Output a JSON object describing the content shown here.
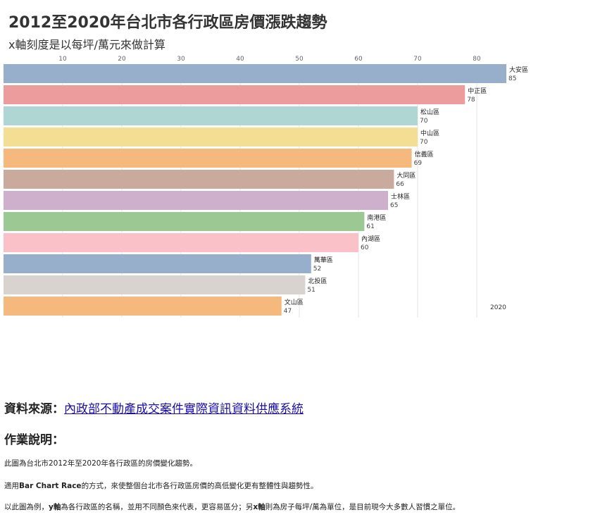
{
  "title": "2012至2020年台北市各行政區房價漲跌趨勢",
  "subtitle": "x軸刻度是以每坪/萬元來做計算",
  "chart_data": {
    "type": "bar",
    "orientation": "horizontal",
    "title": "2012至2020年台北市各行政區房價漲跌趨勢",
    "subtitle": "x軸刻度是以每坪/萬元來做計算",
    "year_label": "2020",
    "x_ticks": [
      10,
      20,
      30,
      40,
      50,
      60,
      70,
      80
    ],
    "xlim": [
      0,
      86
    ],
    "grid": true,
    "categories": [
      "大安區",
      "中正區",
      "松山區",
      "中山區",
      "信義區",
      "大同區",
      "士林區",
      "南港區",
      "內湖區",
      "萬華區",
      "北投區",
      "文山區"
    ],
    "values": [
      85,
      78,
      70,
      70,
      69,
      66,
      65,
      61,
      60,
      52,
      51,
      47
    ],
    "colors": [
      "#97afcb",
      "#ec9c9c",
      "#afd6d2",
      "#f4de94",
      "#f6b97d",
      "#c9aa9c",
      "#cfb0cc",
      "#9cc893",
      "#fbc1c8",
      "#97afcb",
      "#d9d3cf",
      "#f6b97d"
    ]
  },
  "source": {
    "label": "資料來源：",
    "link_text": "內政部不動產成交案件實際資訊資料供應系統"
  },
  "notes": {
    "heading": "作業說明：",
    "p1": "此圖為台北市2012年至2020年各行政區的房價變化趨勢。",
    "p2_pre": "適用",
    "p2_bold": "Bar Chart Race",
    "p2_post": "的方式，來使整個台北市各行政區房價的高低變化更有整體性與趨勢性。",
    "p3_pre": "以此圖為例，",
    "p3_bold1": "y軸",
    "p3_mid": "為各行政區的名稱，並用不同顏色來代表，更容易區分；另",
    "p3_bold2": "x軸",
    "p3_post": "則為房子每坪/萬為單位，是目前現今大多數人習慣之單位。"
  }
}
